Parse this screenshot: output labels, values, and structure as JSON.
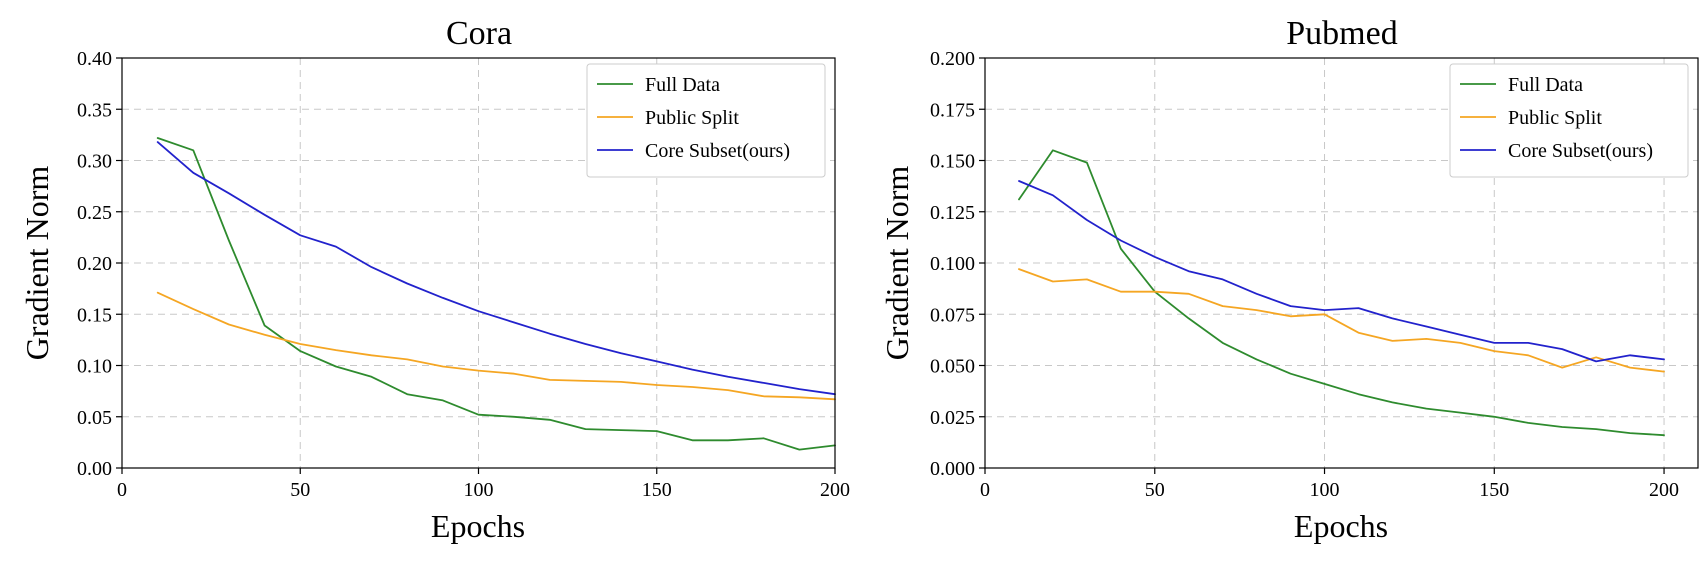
{
  "chart_data": [
    {
      "type": "line",
      "title": "Cora",
      "xlabel": "Epochs",
      "ylabel": "Gradient Norm",
      "xlim": [
        0,
        200
      ],
      "ylim": [
        0,
        0.4
      ],
      "xticks": [
        "0",
        "50",
        "100",
        "150",
        "200"
      ],
      "yticks": [
        "0.00",
        "0.05",
        "0.10",
        "0.15",
        "0.20",
        "0.25",
        "0.30",
        "0.35",
        "0.40"
      ],
      "grid": true,
      "legend_position": "top-right",
      "x": [
        10,
        20,
        30,
        40,
        50,
        60,
        70,
        80,
        90,
        100,
        110,
        120,
        130,
        140,
        150,
        160,
        170,
        180,
        190,
        200
      ],
      "series": [
        {
          "name": "Full Data",
          "color": "#2e8b2e",
          "values": [
            0.322,
            0.31,
            0.222,
            0.139,
            0.114,
            0.099,
            0.089,
            0.072,
            0.066,
            0.052,
            0.05,
            0.047,
            0.038,
            0.037,
            0.036,
            0.027,
            0.027,
            0.029,
            0.018,
            0.022
          ]
        },
        {
          "name": "Public Split",
          "color": "#f5a623",
          "values": [
            0.171,
            0.155,
            0.14,
            0.13,
            0.121,
            0.115,
            0.11,
            0.106,
            0.099,
            0.095,
            0.092,
            0.086,
            0.085,
            0.084,
            0.081,
            0.079,
            0.076,
            0.07,
            0.069,
            0.067
          ]
        },
        {
          "name": "Core Subset(ours)",
          "color": "#2222cc",
          "values": [
            0.318,
            0.288,
            0.268,
            0.247,
            0.227,
            0.216,
            0.196,
            0.18,
            0.166,
            0.153,
            0.142,
            0.131,
            0.121,
            0.112,
            0.104,
            0.096,
            0.089,
            0.083,
            0.077,
            0.072
          ]
        }
      ]
    },
    {
      "type": "line",
      "title": "Pubmed",
      "xlabel": "Epochs",
      "ylabel": "Gradient Norm",
      "xlim": [
        0,
        210
      ],
      "ylim": [
        0,
        0.2
      ],
      "xticks": [
        "0",
        "50",
        "100",
        "150",
        "200"
      ],
      "yticks": [
        "0.000",
        "0.025",
        "0.050",
        "0.075",
        "0.100",
        "0.125",
        "0.150",
        "0.175",
        "0.200"
      ],
      "grid": true,
      "legend_position": "top-right",
      "x": [
        10,
        20,
        30,
        40,
        50,
        60,
        70,
        80,
        90,
        100,
        110,
        120,
        130,
        140,
        150,
        160,
        170,
        180,
        190,
        200
      ],
      "series": [
        {
          "name": "Full Data",
          "color": "#2e8b2e",
          "values": [
            0.131,
            0.155,
            0.149,
            0.107,
            0.086,
            0.073,
            0.061,
            0.053,
            0.046,
            0.041,
            0.036,
            0.032,
            0.029,
            0.027,
            0.025,
            0.022,
            0.02,
            0.019,
            0.017,
            0.016
          ]
        },
        {
          "name": "Public Split",
          "color": "#f5a623",
          "values": [
            0.097,
            0.091,
            0.092,
            0.086,
            0.086,
            0.085,
            0.079,
            0.077,
            0.074,
            0.075,
            0.066,
            0.062,
            0.063,
            0.061,
            0.057,
            0.055,
            0.049,
            0.054,
            0.049,
            0.047
          ]
        },
        {
          "name": "Core Subset(ours)",
          "color": "#2222cc",
          "values": [
            0.14,
            0.133,
            0.121,
            0.111,
            0.103,
            0.096,
            0.092,
            0.085,
            0.079,
            0.077,
            0.078,
            0.073,
            0.069,
            0.065,
            0.061,
            0.061,
            0.058,
            0.052,
            0.055,
            0.053
          ]
        }
      ]
    }
  ]
}
